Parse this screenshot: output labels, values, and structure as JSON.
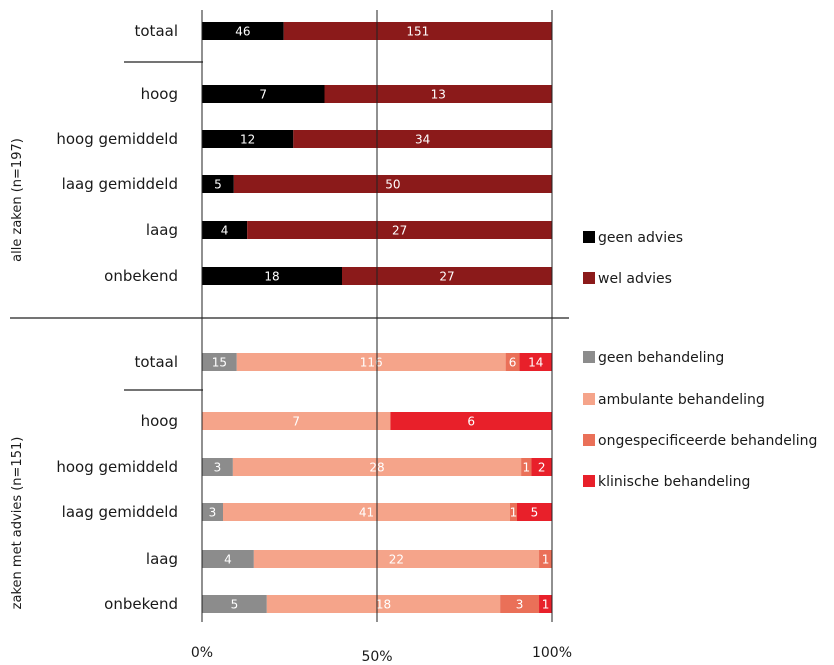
{
  "chart_data": [
    {
      "type": "bar",
      "stacked": "percent",
      "orientation": "horizontal",
      "group_label": "alle zaken (n=197)",
      "categories": [
        "totaal",
        "hoog",
        "hoog gemiddeld",
        "laag gemiddeld",
        "laag",
        "onbekend"
      ],
      "series": [
        {
          "name": "geen advies",
          "color": "#000000",
          "values": [
            46,
            7,
            12,
            5,
            4,
            18
          ]
        },
        {
          "name": "wel advies",
          "color": "#8b1a1a",
          "values": [
            151,
            13,
            34,
            50,
            27,
            27
          ]
        }
      ]
    },
    {
      "type": "bar",
      "stacked": "percent",
      "orientation": "horizontal",
      "group_label": "zaken met advies (n=151)",
      "categories": [
        "totaal",
        "hoog",
        "hoog gemiddeld",
        "laag gemiddeld",
        "laag",
        "onbekend"
      ],
      "series": [
        {
          "name": "geen behandeling",
          "color": "#8c8c8c",
          "values": [
            15,
            0,
            3,
            3,
            4,
            5
          ]
        },
        {
          "name": "ambulante behandeling",
          "color": "#f5a48a",
          "values": [
            116,
            7,
            28,
            41,
            22,
            18
          ]
        },
        {
          "name": "ongespecificeerde behandeling",
          "color": "#ea7058",
          "values": [
            6,
            0,
            1,
            1,
            1,
            3
          ]
        },
        {
          "name": "klinische behandeling",
          "color": "#e8202a",
          "values": [
            14,
            6,
            2,
            5,
            0,
            1
          ]
        }
      ]
    }
  ],
  "x_axis": {
    "ticks": [
      "0%",
      "50%",
      "100%"
    ],
    "range": [
      0,
      100
    ],
    "unit": "%"
  }
}
